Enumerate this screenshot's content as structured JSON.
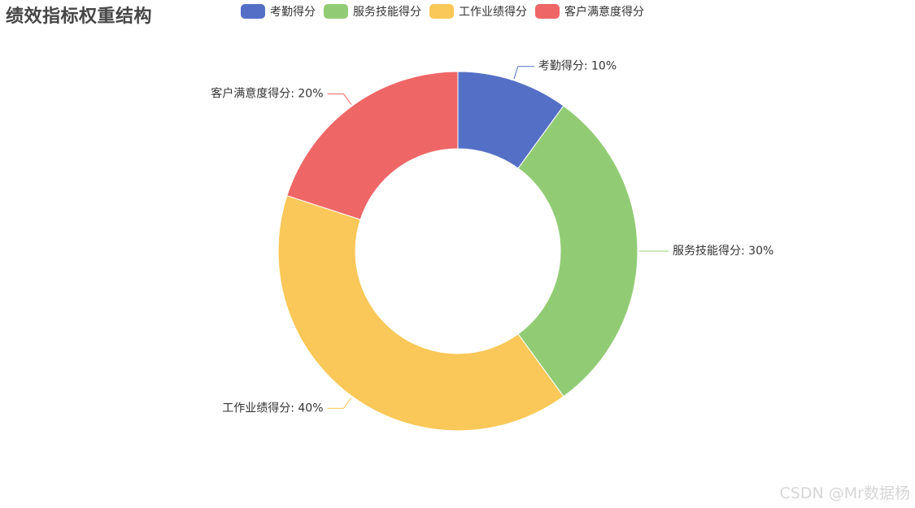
{
  "chart_data": {
    "type": "pie",
    "title": "绩效指标权重结构",
    "legend_position": "top",
    "label_format": "{name}: {value}%",
    "slices": [
      {
        "name": "考勤得分",
        "value": 10,
        "color": "#5470c6"
      },
      {
        "name": "服务技能得分",
        "value": 30,
        "color": "#91cc75"
      },
      {
        "name": "工作业绩得分",
        "value": 40,
        "color": "#fac858"
      },
      {
        "name": "客户满意度得分",
        "value": 20,
        "color": "#ee6666"
      }
    ]
  },
  "watermark": "CSDN @Mr数据杨"
}
